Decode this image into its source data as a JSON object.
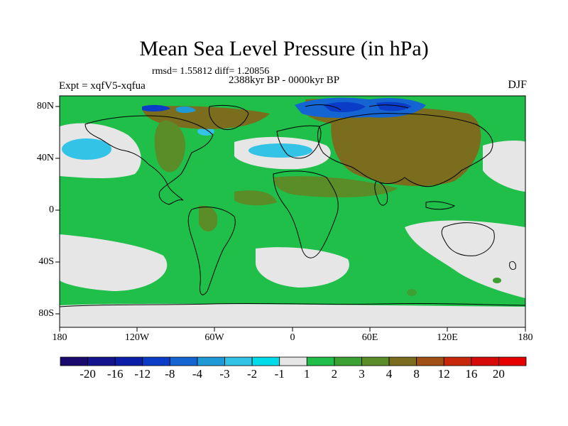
{
  "header": {
    "title": "Mean Sea Level Pressure (in hPa)",
    "stats": "rmsd= 1.55812 diff= 1.20856",
    "period": "2388kyr BP - 0000kyr BP",
    "experiment": "Expt = xqfV5-xqfua",
    "season": "DJF"
  },
  "axes": {
    "lat_labels": [
      "80N",
      "40N",
      "0",
      "40S",
      "80S"
    ],
    "lon_labels": [
      "180",
      "120W",
      "60W",
      "0",
      "60E",
      "120E",
      "180"
    ]
  },
  "colorbar": {
    "labels": [
      "-20",
      "-16",
      "-12",
      "-8",
      "-4",
      "-3",
      "-2",
      "-1",
      "1",
      "2",
      "3",
      "4",
      "8",
      "12",
      "16",
      "20"
    ],
    "colors": [
      "#1a0a6e",
      "#14148f",
      "#0a1ea8",
      "#0a3cc8",
      "#1464d2",
      "#1e9bd7",
      "#32c3e6",
      "#00dcea",
      "#e6e6e6",
      "#1fbf4a",
      "#3ca032",
      "#5a8c28",
      "#7a6e1e",
      "#a05014",
      "#c8280a",
      "#d70a0a",
      "#e60000"
    ]
  },
  "chart_data": {
    "type": "heatmap",
    "title": "Mean Sea Level Pressure (in hPa)",
    "subtitle": "2388kyr BP - 0000kyr BP",
    "xlim": [
      -180,
      180
    ],
    "ylim": [
      -90,
      90
    ],
    "contour_levels": [
      -20,
      -16,
      -12,
      -8,
      -4,
      -3,
      -2,
      -1,
      1,
      2,
      3,
      4,
      8,
      12,
      16,
      20
    ],
    "regions": [
      {
        "level_band": "1 to 2",
        "lon_range": [
          -180,
          180
        ],
        "lat_range": [
          -90,
          90
        ]
      },
      {
        "level_band": "-1 to 1",
        "lon_range": [
          -180,
          -115
        ],
        "lat_range": [
          25,
          68
        ]
      },
      {
        "level_band": "-3 to -2",
        "lon_range": [
          -175,
          -145
        ],
        "lat_range": [
          40,
          52
        ]
      },
      {
        "level_band": "-1 to 1",
        "lon_range": [
          -60,
          25
        ],
        "lat_range": [
          28,
          55
        ]
      },
      {
        "level_band": "-3 to -2",
        "lon_range": [
          -35,
          10
        ],
        "lat_range": [
          40,
          52
        ]
      },
      {
        "level_band": "-8 to -4",
        "lon_range": [
          10,
          100
        ],
        "lat_range": [
          74,
          90
        ]
      },
      {
        "level_band": "4 to 8",
        "lon_range": [
          40,
          130
        ],
        "lat_range": [
          45,
          72
        ]
      },
      {
        "level_band": "-1 to 1",
        "lon_range": [
          -160,
          -65
        ],
        "lat_range": [
          -60,
          -25
        ]
      },
      {
        "level_band": "-1 to 1",
        "lon_range": [
          -40,
          30
        ],
        "lat_range": [
          -60,
          -35
        ]
      },
      {
        "level_band": "-1 to 1",
        "lon_range": [
          90,
          180
        ],
        "lat_range": [
          -60,
          -10
        ]
      },
      {
        "level_band": "-1 to 1",
        "lon_range": [
          140,
          180
        ],
        "lat_range": [
          20,
          50
        ]
      }
    ]
  }
}
